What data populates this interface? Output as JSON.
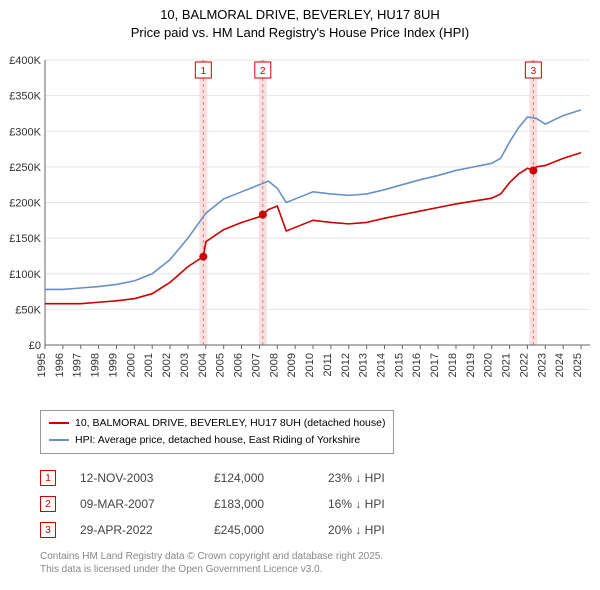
{
  "title_line1": "10, BALMORAL DRIVE, BEVERLEY, HU17 8UH",
  "title_line2": "Price paid vs. HM Land Registry's House Price Index (HPI)",
  "chart": {
    "type": "line",
    "background_color": "#ffffff",
    "grid_color": "#e5e5e5",
    "axis_color": "#666666",
    "x": {
      "min": 1995,
      "max": 2025.5,
      "ticks": [
        1995,
        1996,
        1997,
        1998,
        1999,
        2000,
        2001,
        2002,
        2003,
        2004,
        2005,
        2006,
        2007,
        2008,
        2009,
        2010,
        2011,
        2012,
        2013,
        2014,
        2015,
        2016,
        2017,
        2018,
        2019,
        2020,
        2021,
        2022,
        2023,
        2024,
        2025
      ],
      "label_fontsize": 11
    },
    "y": {
      "min": 0,
      "max": 400000,
      "ticks": [
        0,
        50000,
        100000,
        150000,
        200000,
        250000,
        300000,
        350000,
        400000
      ],
      "labels": [
        "£0",
        "£50K",
        "£100K",
        "£150K",
        "£200K",
        "£250K",
        "£300K",
        "£350K",
        "£400K"
      ],
      "label_fontsize": 11
    },
    "series": [
      {
        "name": "HPI: Average price, detached house, East Riding of Yorkshire",
        "color": "#6a8fc5",
        "width": 1.6,
        "x": [
          1995,
          1996,
          1997,
          1998,
          1999,
          2000,
          2001,
          2002,
          2003,
          2004,
          2005,
          2006,
          2007,
          2007.5,
          2008,
          2008.5,
          2009,
          2010,
          2011,
          2012,
          2013,
          2014,
          2015,
          2016,
          2017,
          2018,
          2019,
          2020,
          2020.5,
          2021,
          2021.5,
          2022,
          2022.5,
          2023,
          2024,
          2025
        ],
        "y": [
          78000,
          78000,
          80000,
          82000,
          85000,
          90000,
          100000,
          120000,
          150000,
          185000,
          205000,
          215000,
          225000,
          230000,
          220000,
          200000,
          205000,
          215000,
          212000,
          210000,
          212000,
          218000,
          225000,
          232000,
          238000,
          245000,
          250000,
          255000,
          262000,
          285000,
          305000,
          320000,
          318000,
          310000,
          322000,
          330000
        ]
      },
      {
        "name": "10, BALMORAL DRIVE, BEVERLEY, HU17 8UH (detached house)",
        "color": "#cc0000",
        "width": 1.6,
        "x": [
          1995,
          1996,
          1997,
          1998,
          1999,
          2000,
          2001,
          2002,
          2003,
          2003.86,
          2004,
          2005,
          2006,
          2007,
          2007.19,
          2007.5,
          2008,
          2008.5,
          2009,
          2010,
          2011,
          2012,
          2013,
          2014,
          2015,
          2016,
          2017,
          2018,
          2019,
          2020,
          2020.5,
          2021,
          2021.5,
          2022,
          2022.33,
          2022.5,
          2023,
          2024,
          2025
        ],
        "y": [
          58000,
          58000,
          58000,
          60000,
          62000,
          65000,
          72000,
          88000,
          110000,
          124000,
          145000,
          162000,
          172000,
          180000,
          183000,
          190000,
          195000,
          160000,
          165000,
          175000,
          172000,
          170000,
          172000,
          178000,
          183000,
          188000,
          193000,
          198000,
          202000,
          206000,
          212000,
          228000,
          240000,
          248000,
          245000,
          250000,
          252000,
          262000,
          270000
        ]
      }
    ],
    "markers": [
      {
        "x": 2003.86,
        "y": 124000,
        "color": "#cc0000"
      },
      {
        "x": 2007.19,
        "y": 183000,
        "color": "#cc0000"
      },
      {
        "x": 2022.33,
        "y": 245000,
        "color": "#cc0000"
      }
    ],
    "callouts": [
      {
        "label": "1",
        "x": 2003.86,
        "box_color": "#cc0000"
      },
      {
        "label": "2",
        "x": 2007.19,
        "box_color": "#cc0000"
      },
      {
        "label": "3",
        "x": 2022.33,
        "box_color": "#cc0000"
      }
    ],
    "vband_color": "#f7d3d3",
    "vline_color": "#e07a7a"
  },
  "legend": {
    "items": [
      {
        "color": "#cc0000",
        "label": "10, BALMORAL DRIVE, BEVERLEY, HU17 8UH (detached house)"
      },
      {
        "color": "#6a8fc5",
        "label": "HPI: Average price, detached house, East Riding of Yorkshire"
      }
    ]
  },
  "events": [
    {
      "num": "1",
      "date": "12-NOV-2003",
      "price": "£124,000",
      "diff": "23% ↓ HPI"
    },
    {
      "num": "2",
      "date": "09-MAR-2007",
      "price": "£183,000",
      "diff": "16% ↓ HPI"
    },
    {
      "num": "3",
      "date": "29-APR-2022",
      "price": "£245,000",
      "diff": "20% ↓ HPI"
    }
  ],
  "footer_line1": "Contains HM Land Registry data © Crown copyright and database right 2025.",
  "footer_line2": "This data is licensed under the Open Government Licence v3.0."
}
